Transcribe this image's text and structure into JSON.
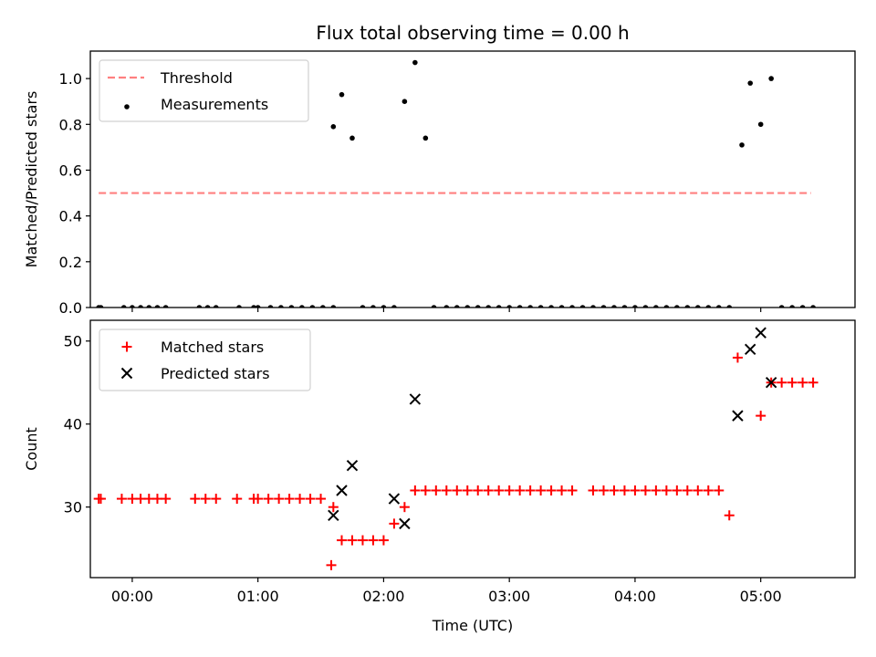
{
  "title": "Flux total observing time = 0.00 h",
  "chart_data": [
    {
      "type": "scatter",
      "ylabel": "Matched/Predicted stars",
      "xlabel": "",
      "xlim": [
        "-00:20",
        "05:45"
      ],
      "ylim": [
        0,
        1.12
      ],
      "x_ticks": [],
      "y_ticks": [
        "0.0",
        "0.2",
        "0.4",
        "0.6",
        "0.8",
        "1.0"
      ],
      "legend_position": "upper left",
      "legend": [
        "Threshold",
        "Measurements"
      ],
      "series": [
        {
          "name": "Threshold",
          "kind": "dashed-line",
          "color": "#ff8080",
          "x": [
            "-00:16",
            "05:24"
          ],
          "y": [
            0.5,
            0.5
          ]
        },
        {
          "name": "Measurements",
          "kind": "dot",
          "color": "#000000",
          "x": [
            "-00:16",
            "-00:15",
            "-00:04",
            "00:00",
            "00:04",
            "00:08",
            "00:12",
            "00:16",
            "00:32",
            "00:36",
            "00:40",
            "00:51",
            "00:58",
            "01:00",
            "01:06",
            "01:11",
            "01:16",
            "01:21",
            "01:26",
            "01:31",
            "01:36",
            "01:36",
            "01:40",
            "01:45",
            "01:50",
            "01:55",
            "02:00",
            "02:05",
            "02:10",
            "02:15",
            "02:20",
            "02:24",
            "02:30",
            "02:35",
            "02:40",
            "02:45",
            "02:50",
            "02:55",
            "03:00",
            "03:05",
            "03:10",
            "03:15",
            "03:20",
            "03:25",
            "03:30",
            "03:35",
            "03:40",
            "03:45",
            "03:50",
            "03:55",
            "04:00",
            "04:05",
            "04:10",
            "04:15",
            "04:20",
            "04:25",
            "04:30",
            "04:35",
            "04:40",
            "04:45",
            "04:51",
            "04:55",
            "05:00",
            "05:05",
            "05:10",
            "05:15",
            "05:20",
            "05:25"
          ],
          "y": [
            0,
            0,
            0,
            0,
            0,
            0,
            0,
            0,
            0,
            0,
            0,
            0,
            0,
            0,
            0,
            0,
            0,
            0,
            0,
            0,
            0,
            0.79,
            0.93,
            0.74,
            0,
            0,
            0,
            0,
            0.9,
            1.07,
            0.74,
            0,
            0,
            0,
            0,
            0,
            0,
            0,
            0,
            0,
            0,
            0,
            0,
            0,
            0,
            0,
            0,
            0,
            0,
            0,
            0,
            0,
            0,
            0,
            0,
            0,
            0,
            0,
            0,
            0,
            0.71,
            0.98,
            0.8,
            1.0,
            0,
            0,
            0,
            0
          ]
        }
      ]
    },
    {
      "type": "scatter",
      "ylabel": "Count",
      "xlabel": "Time (UTC)",
      "xlim": [
        "-00:20",
        "05:45"
      ],
      "ylim": [
        21.5,
        52.5
      ],
      "x_ticks": [
        "00:00",
        "01:00",
        "02:00",
        "03:00",
        "04:00",
        "05:00"
      ],
      "y_ticks": [
        "30",
        "40",
        "50"
      ],
      "legend_position": "upper left",
      "legend": [
        "Matched stars",
        "Predicted stars"
      ],
      "series": [
        {
          "name": "Matched stars",
          "kind": "plus",
          "color": "#ff0000",
          "x": [
            "-00:16",
            "-00:15",
            "-00:05",
            "00:00",
            "00:04",
            "00:08",
            "00:12",
            "00:16",
            "00:30",
            "00:35",
            "00:40",
            "00:50",
            "00:58",
            "01:00",
            "01:05",
            "01:10",
            "01:15",
            "01:20",
            "01:25",
            "01:30",
            "01:35",
            "01:36",
            "01:40",
            "01:45",
            "01:50",
            "01:55",
            "02:00",
            "02:05",
            "02:10",
            "02:15",
            "02:20",
            "02:25",
            "02:30",
            "02:35",
            "02:40",
            "02:45",
            "02:50",
            "02:55",
            "03:00",
            "03:05",
            "03:10",
            "03:15",
            "03:20",
            "03:25",
            "03:30",
            "03:40",
            "03:45",
            "03:50",
            "03:55",
            "04:00",
            "04:05",
            "04:10",
            "04:15",
            "04:20",
            "04:25",
            "04:30",
            "04:35",
            "04:40",
            "04:45",
            "04:49",
            "05:00",
            "05:05",
            "05:10",
            "05:15",
            "05:20",
            "05:25"
          ],
          "y": [
            31,
            31,
            31,
            31,
            31,
            31,
            31,
            31,
            31,
            31,
            31,
            31,
            31,
            31,
            31,
            31,
            31,
            31,
            31,
            31,
            23,
            30,
            26,
            26,
            26,
            26,
            26,
            28,
            30,
            32,
            32,
            32,
            32,
            32,
            32,
            32,
            32,
            32,
            32,
            32,
            32,
            32,
            32,
            32,
            32,
            32,
            32,
            32,
            32,
            32,
            32,
            32,
            32,
            32,
            32,
            32,
            32,
            32,
            29,
            48,
            41,
            45,
            45,
            45,
            45,
            45
          ]
        },
        {
          "name": "Predicted stars",
          "kind": "x",
          "color": "#000000",
          "x": [
            "01:36",
            "01:40",
            "01:45",
            "02:05",
            "02:10",
            "02:15",
            "04:49",
            "04:55",
            "05:00",
            "05:05"
          ],
          "y": [
            29,
            32,
            35,
            31,
            28,
            43,
            41,
            49,
            51,
            45
          ]
        }
      ]
    }
  ]
}
